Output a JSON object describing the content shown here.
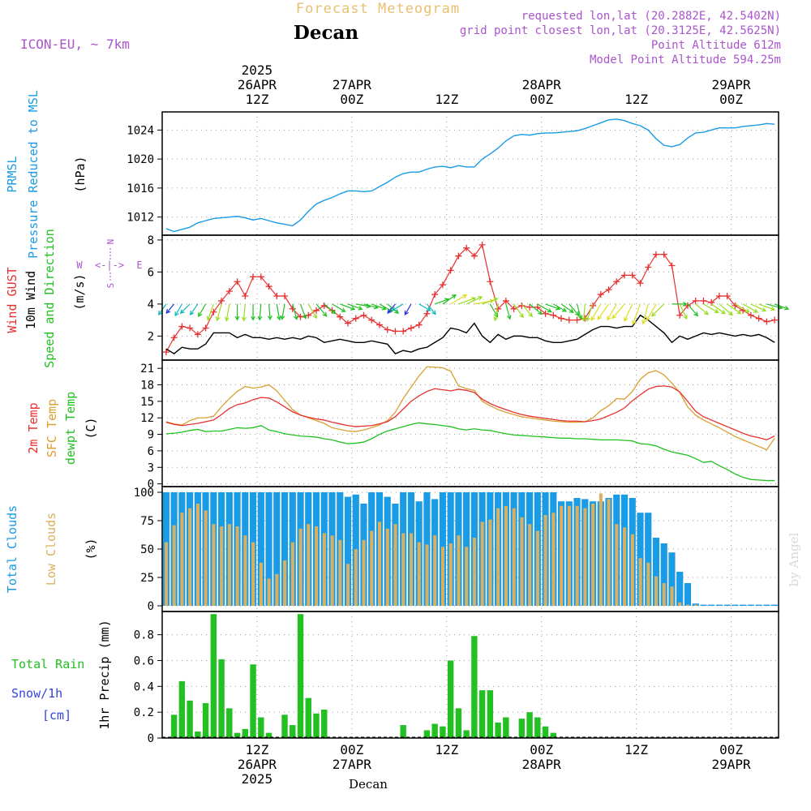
{
  "header": {
    "forecast_title": "Forecast Meteogram",
    "location": "Decan",
    "model": "ICON-EU, ~ 7km",
    "requested": "requested lon,lat (20.2882E, 42.5402N)",
    "gridpoint": "grid point closest lon,lat (20.3125E, 42.5625N)",
    "point_alt": "Point Altitude 612m",
    "model_alt": "Model Point Altitude 594.25m",
    "watermark": "by Angel",
    "footer_location": "Decan"
  },
  "colors": {
    "pressure": "#1a9be6",
    "gust": "#e83030",
    "wind": "#000000",
    "t2m": "#e83030",
    "sfc": "#d9a030",
    "dew": "#22c022",
    "total_clouds": "#1a9be6",
    "low_clouds": "#d9b060",
    "rain": "#22c022",
    "snow": "#3344dd",
    "meta": "#aa55cc",
    "title_orange": "#e8c070"
  },
  "time_axis": {
    "hours": 78,
    "top_labels": [
      {
        "h": 12,
        "lines": [
          "2025",
          "26APR",
          "12Z"
        ]
      },
      {
        "h": 24,
        "lines": [
          "27APR",
          "00Z"
        ]
      },
      {
        "h": 36,
        "lines": [
          "12Z"
        ]
      },
      {
        "h": 48,
        "lines": [
          "28APR",
          "00Z"
        ]
      },
      {
        "h": 60,
        "lines": [
          "12Z"
        ]
      },
      {
        "h": 72,
        "lines": [
          "29APR",
          "00Z"
        ]
      }
    ],
    "bottom_labels": [
      {
        "h": 12,
        "lines": [
          "12Z",
          "26APR",
          "2025"
        ]
      },
      {
        "h": 24,
        "lines": [
          "00Z",
          "27APR"
        ]
      },
      {
        "h": 36,
        "lines": [
          "12Z"
        ]
      },
      {
        "h": 48,
        "lines": [
          "00Z",
          "28APR"
        ]
      },
      {
        "h": 60,
        "lines": [
          "12Z"
        ]
      },
      {
        "h": 72,
        "lines": [
          "00Z",
          "29APR"
        ]
      }
    ]
  },
  "chart_data": [
    {
      "type": "line",
      "id": "pressure",
      "title": "PRMSL Pressure Reduced to MSL",
      "ylabel_lines": [
        "PRMSL",
        "Pressure Reduced to MSL"
      ],
      "unit": "(hPa)",
      "ylim": [
        1009.5,
        1026.5
      ],
      "yticks": [
        1012,
        1016,
        1020,
        1024
      ],
      "series": [
        {
          "name": "PRMSL",
          "values": [
            1010.4,
            1010.0,
            1010.3,
            1010.6,
            1011.2,
            1011.5,
            1011.8,
            1011.9,
            1012.0,
            1012.1,
            1011.9,
            1011.6,
            1011.8,
            1011.5,
            1011.2,
            1011.0,
            1010.8,
            1011.6,
            1012.8,
            1013.8,
            1014.3,
            1014.7,
            1015.2,
            1015.6,
            1015.6,
            1015.5,
            1015.6,
            1016.2,
            1016.8,
            1017.5,
            1018.0,
            1018.2,
            1018.2,
            1018.6,
            1018.9,
            1019.0,
            1018.8,
            1019.1,
            1018.9,
            1018.9,
            1020.0,
            1020.7,
            1021.5,
            1022.5,
            1023.2,
            1023.4,
            1023.3,
            1023.5,
            1023.6,
            1023.6,
            1023.7,
            1023.8,
            1023.9,
            1024.2,
            1024.6,
            1025.0,
            1025.4,
            1025.5,
            1025.3,
            1024.9,
            1024.6,
            1024.0,
            1022.8,
            1021.9,
            1021.7,
            1022.0,
            1022.9,
            1023.6,
            1023.7,
            1024.0,
            1024.3,
            1024.3,
            1024.3,
            1024.5,
            1024.6,
            1024.7,
            1024.9,
            1024.8
          ]
        }
      ]
    },
    {
      "type": "line",
      "id": "wind",
      "title": "Wind GUST, 10m Wind Speed and Direction",
      "ylabel_lines": [
        "Wind GUST",
        "10m Wind",
        "Speed and Direction"
      ],
      "unit": "(m/s)",
      "compass": {
        "n": "N",
        "s": "S",
        "w": "W",
        "e": "E",
        "arrows": "<-|->"
      },
      "ylim": [
        0.5,
        8.3
      ],
      "yticks": [
        2,
        4,
        6,
        8
      ],
      "series": [
        {
          "name": "Wind GUST",
          "values": [
            1.0,
            1.9,
            2.6,
            2.5,
            2.1,
            2.5,
            3.5,
            4.2,
            4.8,
            5.4,
            4.5,
            5.7,
            5.7,
            5.1,
            4.5,
            4.5,
            3.7,
            3.2,
            3.3,
            3.6,
            3.9,
            3.6,
            3.2,
            2.8,
            3.1,
            3.3,
            3.0,
            2.7,
            2.4,
            2.3,
            2.3,
            2.5,
            2.7,
            3.4,
            4.6,
            5.2,
            6.1,
            7.0,
            7.5,
            7.0,
            7.7,
            5.4,
            3.7,
            4.2,
            3.7,
            3.9,
            3.8,
            3.8,
            3.4,
            3.3,
            3.1,
            3.0,
            3.0,
            3.1,
            3.9,
            4.6,
            4.9,
            5.4,
            5.8,
            5.8,
            5.3,
            6.3,
            7.1,
            7.1,
            6.4,
            3.3,
            3.9,
            4.2,
            4.2,
            4.1,
            4.5,
            4.5,
            3.9,
            3.6,
            3.3,
            3.1,
            2.9,
            3.0
          ]
        },
        {
          "name": "10m Wind",
          "values": [
            1.2,
            0.9,
            1.3,
            1.2,
            1.2,
            1.5,
            2.2,
            2.2,
            2.2,
            1.9,
            2.1,
            1.9,
            1.9,
            1.8,
            1.9,
            1.8,
            1.9,
            1.8,
            2.0,
            1.9,
            1.6,
            1.7,
            1.8,
            1.7,
            1.6,
            1.6,
            1.7,
            1.6,
            1.5,
            0.9,
            1.1,
            1.0,
            1.2,
            1.3,
            1.6,
            1.9,
            2.5,
            2.4,
            2.2,
            2.8,
            2.0,
            1.6,
            2.1,
            1.8,
            2.0,
            2.0,
            1.9,
            1.9,
            1.7,
            1.6,
            1.6,
            1.7,
            1.8,
            2.1,
            2.4,
            2.6,
            2.6,
            2.5,
            2.6,
            2.6,
            3.3,
            3.0,
            2.6,
            2.2,
            1.6,
            2.0,
            1.8,
            2.0,
            2.2,
            2.1,
            2.2,
            2.1,
            2.0,
            2.1,
            2.0,
            2.1,
            1.9,
            1.6
          ]
        }
      ],
      "wind_dir_from_deg": [
        35,
        40,
        30,
        45,
        35,
        30,
        20,
        15,
        10,
        0,
        5,
        0,
        5,
        355,
        350,
        10,
        345,
        340,
        330,
        320,
        310,
        300,
        290,
        290,
        280,
        285,
        290,
        300,
        310,
        40,
        60,
        30,
        300,
        320,
        250,
        235,
        240,
        250,
        245,
        260,
        250,
        330,
        10,
        345,
        325,
        320,
        310,
        300,
        290,
        300,
        305,
        320,
        345,
        5,
        20,
        30,
        35,
        30,
        40,
        25,
        20,
        15,
        30,
        45,
        270,
        335,
        320,
        310,
        300,
        305,
        310,
        305,
        300,
        300,
        295,
        290,
        285,
        290
      ]
    },
    {
      "type": "line",
      "id": "temperature",
      "title": "2m Temp, SFC Temp, dewpt Temp",
      "ylabel_lines": [
        "2m Temp",
        "SFC Temp",
        "dewpt Temp"
      ],
      "unit": "(C)",
      "ylim": [
        -0.5,
        22.5
      ],
      "yticks": [
        0,
        3,
        6,
        9,
        12,
        15,
        18,
        21
      ],
      "series": [
        {
          "name": "2m Temp",
          "values": [
            11.2,
            10.8,
            10.6,
            10.8,
            11.0,
            11.3,
            11.6,
            12.6,
            13.7,
            14.4,
            14.7,
            15.3,
            15.7,
            15.6,
            14.9,
            14.0,
            13.1,
            12.5,
            12.1,
            11.8,
            11.6,
            11.2,
            10.9,
            10.6,
            10.4,
            10.5,
            10.6,
            10.9,
            11.3,
            12.2,
            13.6,
            15.0,
            16.0,
            16.8,
            17.3,
            17.1,
            16.9,
            17.2,
            17.0,
            16.6,
            15.4,
            14.6,
            14.0,
            13.5,
            13.0,
            12.6,
            12.3,
            12.1,
            11.9,
            11.7,
            11.5,
            11.4,
            11.4,
            11.3,
            11.5,
            11.8,
            12.4,
            13.0,
            13.8,
            15.1,
            16.2,
            17.2,
            17.7,
            17.8,
            17.6,
            16.7,
            15.0,
            13.2,
            12.2,
            11.6,
            11.0,
            10.4,
            9.8,
            9.2,
            8.7,
            8.4,
            8.0,
            8.7
          ]
        },
        {
          "name": "SFC Temp",
          "values": [
            11.3,
            10.9,
            10.7,
            11.5,
            12.0,
            12.0,
            12.3,
            14.0,
            15.5,
            16.8,
            17.7,
            17.4,
            17.6,
            18.0,
            16.9,
            15.2,
            13.5,
            12.5,
            12.0,
            11.5,
            11.0,
            10.2,
            9.9,
            9.6,
            9.5,
            9.8,
            10.2,
            10.7,
            11.5,
            13.0,
            15.5,
            17.6,
            19.6,
            21.3,
            21.2,
            21.1,
            20.5,
            17.8,
            17.3,
            17.0,
            15.0,
            14.2,
            13.5,
            13.0,
            12.6,
            12.2,
            12.0,
            11.8,
            11.6,
            11.4,
            11.3,
            11.2,
            11.2,
            11.3,
            12.0,
            13.3,
            14.2,
            15.5,
            15.4,
            16.8,
            19.0,
            20.2,
            20.6,
            19.8,
            18.3,
            16.6,
            14.0,
            12.5,
            11.6,
            10.9,
            10.2,
            9.4,
            8.6,
            8.0,
            7.4,
            6.8,
            6.2,
            8.3
          ]
        },
        {
          "name": "dewpt Temp",
          "values": [
            9.1,
            9.2,
            9.4,
            9.7,
            9.9,
            9.5,
            9.6,
            9.6,
            9.9,
            10.2,
            10.1,
            10.2,
            10.6,
            9.8,
            9.5,
            9.1,
            8.9,
            8.7,
            8.6,
            8.5,
            8.2,
            8.0,
            7.6,
            7.3,
            7.4,
            7.6,
            8.2,
            9.0,
            9.6,
            10.0,
            10.4,
            10.8,
            11.1,
            10.9,
            10.8,
            10.6,
            10.4,
            10.0,
            9.8,
            10.0,
            9.8,
            9.7,
            9.4,
            9.1,
            8.9,
            8.8,
            8.7,
            8.6,
            8.5,
            8.4,
            8.3,
            8.3,
            8.2,
            8.2,
            8.1,
            8.0,
            8.0,
            8.0,
            7.9,
            7.8,
            7.3,
            7.2,
            6.9,
            6.3,
            5.8,
            5.5,
            5.2,
            4.6,
            3.9,
            4.1,
            3.3,
            2.6,
            1.8,
            1.2,
            0.8,
            0.7,
            0.6,
            0.6
          ]
        }
      ]
    },
    {
      "type": "bar",
      "id": "clouds",
      "title": "Total Clouds, Low Clouds",
      "ylabel_lines": [
        "Total Clouds",
        "Low Clouds"
      ],
      "unit": "(%)",
      "ylim": [
        -5,
        105
      ],
      "yticks": [
        0,
        25,
        50,
        75,
        100
      ],
      "series": [
        {
          "name": "Total Clouds",
          "values": [
            100,
            100,
            100,
            100,
            100,
            100,
            100,
            100,
            100,
            100,
            100,
            100,
            100,
            100,
            100,
            100,
            100,
            100,
            100,
            100,
            100,
            100,
            100,
            96,
            98,
            90,
            100,
            100,
            96,
            90,
            100,
            100,
            92,
            100,
            94,
            100,
            100,
            100,
            100,
            100,
            100,
            100,
            100,
            100,
            100,
            100,
            100,
            100,
            100,
            100,
            92,
            92,
            95,
            94,
            92,
            92,
            95,
            98,
            98,
            95,
            82,
            82,
            60,
            55,
            47,
            30,
            20,
            2,
            1,
            1,
            1,
            1,
            1,
            1,
            1,
            1,
            1,
            1
          ]
        },
        {
          "name": "Low Clouds",
          "values": [
            56,
            71,
            82,
            86,
            90,
            84,
            72,
            70,
            72,
            70,
            62,
            56,
            38,
            24,
            28,
            40,
            56,
            68,
            72,
            70,
            64,
            62,
            58,
            37,
            50,
            58,
            66,
            74,
            68,
            72,
            64,
            64,
            56,
            54,
            62,
            52,
            55,
            62,
            52,
            60,
            74,
            76,
            86,
            88,
            86,
            78,
            72,
            66,
            80,
            82,
            88,
            88,
            88,
            86,
            90,
            99,
            94,
            72,
            69,
            63,
            42,
            38,
            26,
            20,
            17,
            3,
            1,
            1,
            0,
            0,
            0,
            0,
            0,
            0,
            0,
            0,
            0,
            0
          ]
        }
      ]
    },
    {
      "type": "bar",
      "id": "precip",
      "title": "Total Rain, Snow/1h",
      "ylabel_lines": [
        "Total  Rain",
        "Snow/1h",
        "[cm]"
      ],
      "unit": "1hr Precip (mm)",
      "ylim": [
        0,
        0.98
      ],
      "yticks": [
        0,
        0.2,
        0.4,
        0.6,
        0.8
      ],
      "series": [
        {
          "name": "Total Rain",
          "values": [
            0,
            0.18,
            0.44,
            0.29,
            0.05,
            0.27,
            0.96,
            0.61,
            0.23,
            0.04,
            0.07,
            0.57,
            0.16,
            0.04,
            0,
            0.18,
            0.1,
            0.96,
            0.31,
            0.19,
            0.22,
            0,
            0,
            0,
            0,
            0,
            0,
            0,
            0,
            0,
            0.1,
            0,
            0,
            0.06,
            0.11,
            0.09,
            0.6,
            0.23,
            0.06,
            0.79,
            0.37,
            0.37,
            0.12,
            0.16,
            0,
            0.15,
            0.2,
            0.16,
            0.09,
            0.04,
            0,
            0,
            0,
            0,
            0,
            0,
            0,
            0,
            0,
            0,
            0,
            0,
            0,
            0,
            0,
            0,
            0,
            0,
            0,
            0,
            0,
            0,
            0,
            0,
            0,
            0,
            0,
            0
          ]
        },
        {
          "name": "Snow/1h",
          "values": [
            0,
            0,
            0,
            0,
            0,
            0,
            0,
            0,
            0,
            0,
            0,
            0,
            0,
            0,
            0,
            0,
            0,
            0,
            0,
            0,
            0,
            0,
            0,
            0,
            0,
            0,
            0,
            0,
            0,
            0,
            0,
            0,
            0,
            0,
            0,
            0,
            0,
            0,
            0,
            0,
            0,
            0,
            0,
            0,
            0,
            0,
            0,
            0,
            0,
            0,
            0,
            0,
            0,
            0,
            0,
            0,
            0,
            0,
            0,
            0,
            0,
            0,
            0,
            0,
            0,
            0,
            0,
            0,
            0,
            0,
            0,
            0,
            0,
            0,
            0,
            0,
            0,
            0
          ]
        }
      ]
    }
  ]
}
